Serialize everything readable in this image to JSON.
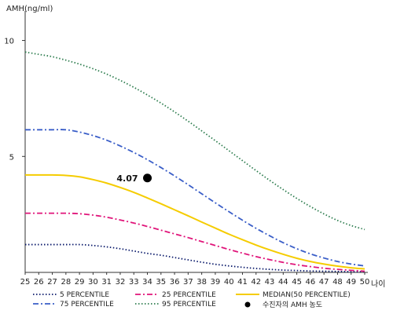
{
  "chart_data": {
    "type": "line",
    "ylabel": "AMH(ng/ml)",
    "xlabel": "나이",
    "xlim": [
      25,
      50
    ],
    "ylim": [
      0,
      11
    ],
    "x": [
      25,
      26,
      27,
      28,
      29,
      30,
      31,
      32,
      33,
      34,
      35,
      36,
      37,
      38,
      39,
      40,
      41,
      42,
      43,
      44,
      45,
      46,
      47,
      48,
      49,
      50
    ],
    "xticks": [
      "25",
      "26",
      "27",
      "28",
      "29",
      "30",
      "31",
      "32",
      "33",
      "34",
      "35",
      "36",
      "37",
      "38",
      "39",
      "40",
      "41",
      "42",
      "43",
      "44",
      "45",
      "46",
      "47",
      "48",
      "49",
      "50"
    ],
    "yticks": [
      {
        "value": 5,
        "label": "5"
      },
      {
        "value": 10,
        "label": "10"
      }
    ],
    "series": [
      {
        "name": "5 PERCENTILE",
        "color": "#0a1a6b",
        "dash": "dot",
        "values": [
          1.2,
          1.2,
          1.2,
          1.2,
          1.2,
          1.16,
          1.1,
          1.02,
          0.92,
          0.82,
          0.74,
          0.64,
          0.54,
          0.44,
          0.35,
          0.28,
          0.22,
          0.17,
          0.13,
          0.1,
          0.08,
          0.06,
          0.05,
          0.04,
          0.03,
          0.03
        ]
      },
      {
        "name": "25 PERCENTILE",
        "color": "#e0157a",
        "dash": "dashdot",
        "values": [
          2.55,
          2.55,
          2.55,
          2.55,
          2.53,
          2.47,
          2.38,
          2.26,
          2.13,
          1.98,
          1.82,
          1.66,
          1.5,
          1.33,
          1.16,
          0.99,
          0.83,
          0.68,
          0.55,
          0.43,
          0.33,
          0.25,
          0.18,
          0.13,
          0.09,
          0.05
        ]
      },
      {
        "name": "MEDIAN(50 PERCENTILE)",
        "color": "#f5cc00",
        "dash": "solid",
        "values": [
          4.2,
          4.2,
          4.2,
          4.18,
          4.12,
          4.0,
          3.85,
          3.66,
          3.45,
          3.21,
          2.96,
          2.7,
          2.44,
          2.17,
          1.91,
          1.65,
          1.41,
          1.18,
          0.97,
          0.78,
          0.61,
          0.47,
          0.36,
          0.27,
          0.2,
          0.15
        ]
      },
      {
        "name": "75 PERCENTILE",
        "color": "#3a5ec8",
        "dash": "dashdot",
        "values": [
          6.15,
          6.15,
          6.15,
          6.15,
          6.05,
          5.9,
          5.7,
          5.45,
          5.17,
          4.86,
          4.52,
          4.16,
          3.78,
          3.39,
          3.0,
          2.62,
          2.25,
          1.9,
          1.58,
          1.28,
          1.02,
          0.8,
          0.62,
          0.47,
          0.36,
          0.28
        ]
      },
      {
        "name": "95 PERCENTILE",
        "color": "#2e7d4f",
        "dash": "dot",
        "values": [
          9.5,
          9.4,
          9.3,
          9.15,
          8.98,
          8.78,
          8.55,
          8.28,
          7.98,
          7.65,
          7.3,
          6.92,
          6.52,
          6.1,
          5.68,
          5.25,
          4.82,
          4.39,
          3.97,
          3.57,
          3.19,
          2.84,
          2.52,
          2.24,
          2.02,
          1.85
        ]
      }
    ],
    "highlight_point": {
      "name": "수진자의 AMH 농도",
      "x": 34,
      "y": 4.07,
      "label": "4.07"
    },
    "legend": {
      "placement": "bottom",
      "items": [
        {
          "label": "5 PERCENTILE",
          "series": 0
        },
        {
          "label": "25 PERCENTILE",
          "series": 1
        },
        {
          "label": "MEDIAN(50 PERCENTILE)",
          "series": 2
        },
        {
          "label": "75 PERCENTILE",
          "series": 3
        },
        {
          "label": "95 PERCENTILE",
          "series": 4
        },
        {
          "label": "수진자의 AMH 농도",
          "series": "point"
        }
      ]
    },
    "grid": false
  }
}
